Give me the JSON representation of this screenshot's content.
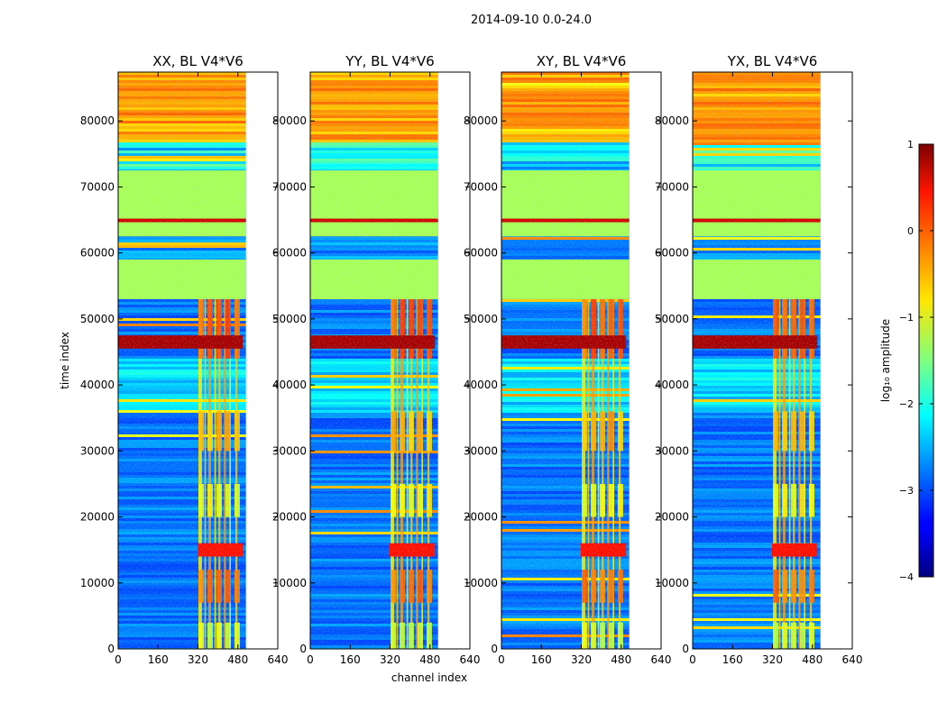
{
  "chart_data": {
    "type": "heatmap",
    "suptitle": "2014-09-10 0.0-24.0",
    "panels": [
      {
        "title": "XX, BL V4*V6"
      },
      {
        "title": "YY, BL V4*V6"
      },
      {
        "title": "XY, BL V4*V6"
      },
      {
        "title": "YX, BL V4*V6"
      }
    ],
    "xlabel": "channel index",
    "ylabel": "time index",
    "xlim": [
      0,
      640
    ],
    "ylim": [
      0,
      87400
    ],
    "xticks": [
      0,
      160,
      320,
      480,
      640
    ],
    "yticks": [
      0,
      10000,
      20000,
      30000,
      40000,
      50000,
      60000,
      70000,
      80000
    ],
    "data_channel_extent": [
      0,
      512
    ],
    "colorbar": {
      "label": "log₁₀ amplitude",
      "vmin": -4,
      "vmax": 1,
      "ticks": [
        1,
        0,
        -1,
        -2,
        -3,
        -4
      ],
      "tick_labels": [
        "1",
        "0",
        "−1",
        "−2",
        "−3",
        "−4"
      ],
      "colormap": "jet"
    },
    "notable_bands": [
      {
        "time_range": [
          53000,
          59000
        ],
        "log_amplitude": -1.3,
        "note": "flagged constant"
      },
      {
        "time_range": [
          62500,
          72500
        ],
        "log_amplitude": -1.3,
        "note": "flagged constant"
      },
      {
        "time_range": [
          45500,
          47500
        ],
        "log_amplitude": 0.8,
        "note": "strong RFI burst"
      },
      {
        "time_range": [
          14000,
          16000
        ],
        "log_amplitude": 0.3,
        "note": "RFI burst in channels 320-500"
      },
      {
        "time_range": [
          77000,
          87400
        ],
        "log_amplitude": -0.3,
        "note": "elevated amplitude"
      }
    ]
  }
}
